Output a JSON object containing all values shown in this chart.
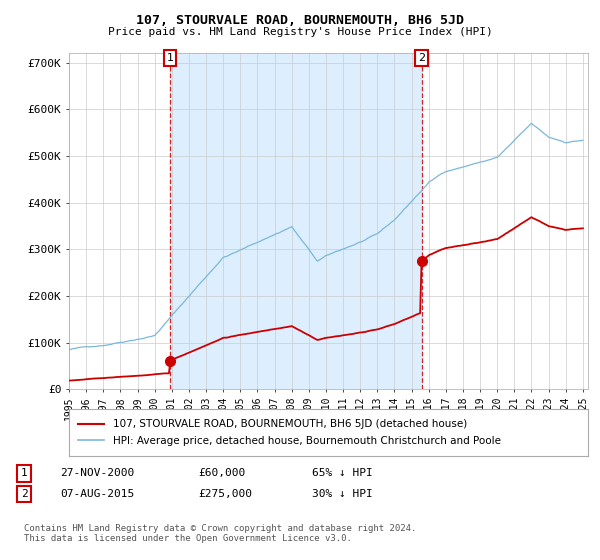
{
  "title": "107, STOURVALE ROAD, BOURNEMOUTH, BH6 5JD",
  "subtitle": "Price paid vs. HM Land Registry's House Price Index (HPI)",
  "ylabel_ticks": [
    "£0",
    "£100K",
    "£200K",
    "£300K",
    "£400K",
    "£500K",
    "£600K",
    "£700K"
  ],
  "ytick_values": [
    0,
    100000,
    200000,
    300000,
    400000,
    500000,
    600000,
    700000
  ],
  "ylim": [
    0,
    720000
  ],
  "hpi_color": "#7ab8d9",
  "price_color": "#cc0000",
  "vline_color": "#cc0000",
  "shade_color": "#ddeeff",
  "marker1_date": 2000.9,
  "marker1_price": 60000,
  "marker2_date": 2015.58,
  "marker2_price": 275000,
  "label_red": "107, STOURVALE ROAD, BOURNEMOUTH, BH6 5JD (detached house)",
  "label_blue": "HPI: Average price, detached house, Bournemouth Christchurch and Poole",
  "transaction1_date": "27-NOV-2000",
  "transaction1_price": "£60,000",
  "transaction1_hpi": "65% ↓ HPI",
  "transaction2_date": "07-AUG-2015",
  "transaction2_price": "£275,000",
  "transaction2_hpi": "30% ↓ HPI",
  "footnote": "Contains HM Land Registry data © Crown copyright and database right 2024.\nThis data is licensed under the Open Government Licence v3.0.",
  "background_color": "#ffffff",
  "grid_color": "#cccccc"
}
